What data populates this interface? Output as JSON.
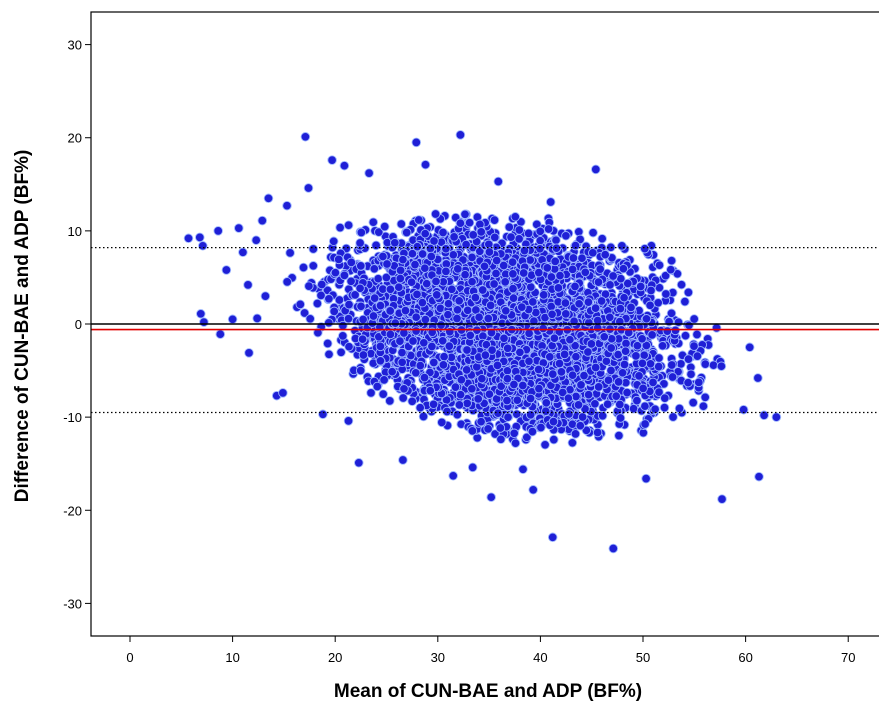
{
  "chart_data": {
    "type": "scatter",
    "title": "",
    "xlabel": "Mean of CUN-BAE and ADP (BF%)",
    "ylabel": "Difference of CUN-BAE and ADP (BF%)",
    "xlim": [
      -3.8,
      73
    ],
    "ylim": [
      -33.5,
      33.5
    ],
    "xticks": [
      0,
      10,
      20,
      30,
      40,
      50,
      60,
      70
    ],
    "yticks": [
      30,
      20,
      10,
      0,
      -10,
      -20,
      -30
    ],
    "xtick_labels": [
      "0",
      "10",
      "20",
      "30",
      "40",
      "50",
      "60",
      "70"
    ],
    "ytick_labels": [
      "30",
      "20",
      "10",
      "0",
      "-10",
      "-20",
      "-30"
    ],
    "grid": false,
    "legend": "none",
    "reference_lines": [
      {
        "name": "zero",
        "y": 0,
        "color": "#000000",
        "style": "solid"
      },
      {
        "name": "mean-difference",
        "y": -0.6,
        "color": "#e00000",
        "style": "solid"
      },
      {
        "name": "upper-limit-of-agreement",
        "y": 8.2,
        "color": "#000000",
        "style": "dotted"
      },
      {
        "name": "lower-limit-of-agreement",
        "y": -9.5,
        "color": "#000000",
        "style": "dotted"
      }
    ],
    "marker": {
      "color": "#1f1fd6",
      "edge": "#9fb8ff"
    },
    "cloud": {
      "description_points": 4200,
      "x_range": [
        14,
        60
      ],
      "y_upper_at_x": [
        [
          15,
          10
        ],
        [
          20,
          10.5
        ],
        [
          30,
          11
        ],
        [
          40,
          10
        ],
        [
          50,
          8
        ],
        [
          55,
          5
        ],
        [
          60,
          -1
        ]
      ],
      "y_lower_at_x": [
        [
          15,
          0
        ],
        [
          20,
          -4
        ],
        [
          25,
          -8
        ],
        [
          30,
          -10
        ],
        [
          40,
          -12
        ],
        [
          50,
          -11
        ],
        [
          55,
          -10
        ],
        [
          60,
          -8
        ]
      ]
    },
    "points": [
      {
        "x": 5.7,
        "y": 9.2
      },
      {
        "x": 6.8,
        "y": 9.3
      },
      {
        "x": 7.1,
        "y": 8.4
      },
      {
        "x": 6.9,
        "y": 1.1
      },
      {
        "x": 7.2,
        "y": 0.2
      },
      {
        "x": 8.6,
        "y": 10.0
      },
      {
        "x": 8.8,
        "y": -1.1
      },
      {
        "x": 9.4,
        "y": 5.8
      },
      {
        "x": 10.0,
        "y": 0.5
      },
      {
        "x": 10.6,
        "y": 10.3
      },
      {
        "x": 11.0,
        "y": 7.7
      },
      {
        "x": 11.6,
        "y": -3.1
      },
      {
        "x": 12.3,
        "y": 9.0
      },
      {
        "x": 12.9,
        "y": 11.1
      },
      {
        "x": 13.5,
        "y": 13.5
      },
      {
        "x": 14.3,
        "y": -7.7
      },
      {
        "x": 14.9,
        "y": -7.4
      },
      {
        "x": 13.2,
        "y": 3.0
      },
      {
        "x": 12.4,
        "y": 0.6
      },
      {
        "x": 11.5,
        "y": 4.2
      },
      {
        "x": 15.3,
        "y": 12.7
      },
      {
        "x": 16.6,
        "y": 2.1
      },
      {
        "x": 17.1,
        "y": 20.1
      },
      {
        "x": 17.4,
        "y": 14.6
      },
      {
        "x": 19.7,
        "y": 17.6
      },
      {
        "x": 20.9,
        "y": 17.0
      },
      {
        "x": 23.3,
        "y": 16.2
      },
      {
        "x": 27.9,
        "y": 19.5
      },
      {
        "x": 28.8,
        "y": 17.1
      },
      {
        "x": 32.2,
        "y": 20.3
      },
      {
        "x": 35.9,
        "y": 15.3
      },
      {
        "x": 41.0,
        "y": 13.1
      },
      {
        "x": 45.4,
        "y": 16.6
      },
      {
        "x": 18.8,
        "y": -9.7
      },
      {
        "x": 21.3,
        "y": -10.4
      },
      {
        "x": 22.3,
        "y": -14.9
      },
      {
        "x": 26.6,
        "y": -14.6
      },
      {
        "x": 31.5,
        "y": -16.3
      },
      {
        "x": 33.4,
        "y": -15.4
      },
      {
        "x": 35.2,
        "y": -18.6
      },
      {
        "x": 38.3,
        "y": -15.6
      },
      {
        "x": 39.3,
        "y": -17.8
      },
      {
        "x": 41.2,
        "y": -22.9
      },
      {
        "x": 47.1,
        "y": -24.1
      },
      {
        "x": 50.3,
        "y": -16.6
      },
      {
        "x": 57.7,
        "y": -18.8
      },
      {
        "x": 61.3,
        "y": -16.4
      },
      {
        "x": 61.8,
        "y": -9.8
      },
      {
        "x": 63.0,
        "y": -10.0
      },
      {
        "x": 59.8,
        "y": -9.2
      },
      {
        "x": 61.2,
        "y": -5.8
      },
      {
        "x": 60.4,
        "y": -2.5
      }
    ]
  }
}
